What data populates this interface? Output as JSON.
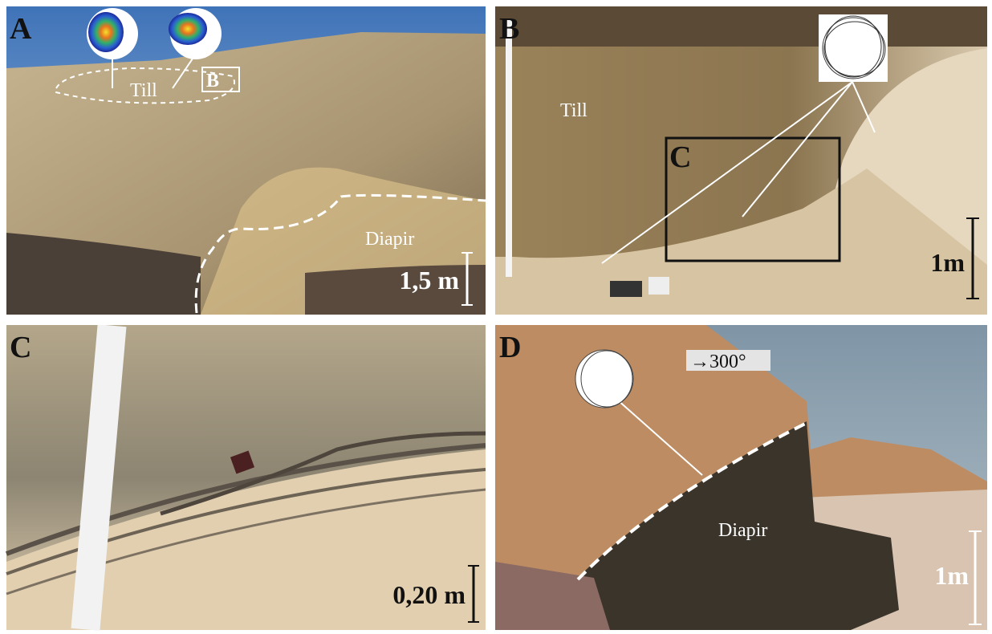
{
  "panels": [
    {
      "label": "A",
      "annotations": [
        "Till",
        "B",
        "Diapir"
      ],
      "scale": "1,5 m"
    },
    {
      "label": "B",
      "annotations": [
        "Till",
        "C"
      ],
      "scale": "1m"
    },
    {
      "label": "C",
      "scale": "0,20 m"
    },
    {
      "label": "D",
      "annotations": [
        "→300°",
        "Diapir"
      ],
      "scale": "1m"
    }
  ]
}
